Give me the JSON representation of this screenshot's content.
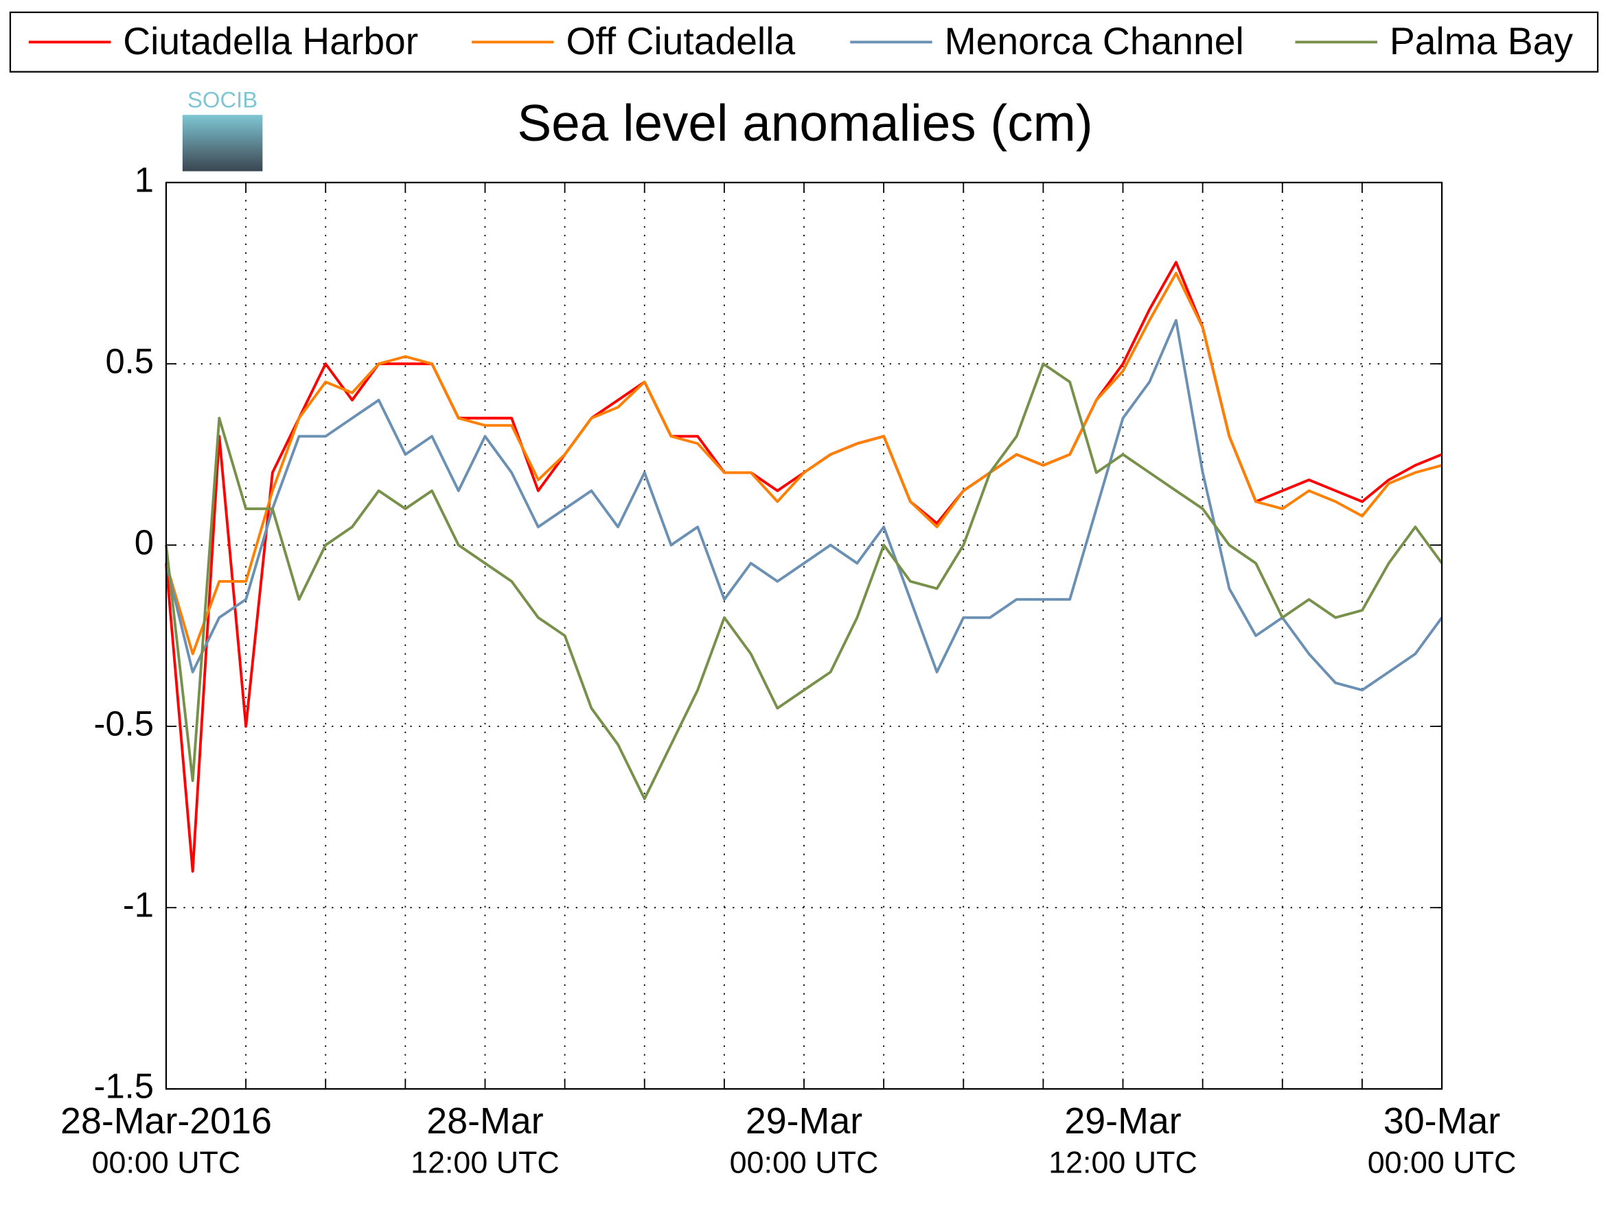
{
  "chart_data": {
    "type": "line",
    "title": "Sea level anomalies (cm)",
    "logo": "SOCIB",
    "x": [
      "2016-03-28T00:00",
      "2016-03-28T01:00",
      "2016-03-28T02:00",
      "2016-03-28T03:00",
      "2016-03-28T04:00",
      "2016-03-28T05:00",
      "2016-03-28T06:00",
      "2016-03-28T07:00",
      "2016-03-28T08:00",
      "2016-03-28T09:00",
      "2016-03-28T10:00",
      "2016-03-28T11:00",
      "2016-03-28T12:00",
      "2016-03-28T13:00",
      "2016-03-28T14:00",
      "2016-03-28T15:00",
      "2016-03-28T16:00",
      "2016-03-28T17:00",
      "2016-03-28T18:00",
      "2016-03-28T19:00",
      "2016-03-28T20:00",
      "2016-03-28T21:00",
      "2016-03-28T22:00",
      "2016-03-28T23:00",
      "2016-03-29T00:00",
      "2016-03-29T01:00",
      "2016-03-29T02:00",
      "2016-03-29T03:00",
      "2016-03-29T04:00",
      "2016-03-29T05:00",
      "2016-03-29T06:00",
      "2016-03-29T07:00",
      "2016-03-29T08:00",
      "2016-03-29T09:00",
      "2016-03-29T10:00",
      "2016-03-29T11:00",
      "2016-03-29T12:00",
      "2016-03-29T13:00",
      "2016-03-29T14:00",
      "2016-03-29T15:00",
      "2016-03-29T16:00",
      "2016-03-29T17:00",
      "2016-03-29T18:00",
      "2016-03-29T19:00",
      "2016-03-29T20:00",
      "2016-03-29T21:00",
      "2016-03-29T22:00",
      "2016-03-29T23:00",
      "2016-03-30T00:00"
    ],
    "series": [
      {
        "name": "Ciutadella Harbor",
        "color": "#ff0000",
        "values": [
          -0.05,
          -0.9,
          0.3,
          -0.5,
          0.2,
          0.35,
          0.5,
          0.4,
          0.5,
          0.5,
          0.5,
          0.35,
          0.35,
          0.35,
          0.15,
          0.25,
          0.35,
          0.4,
          0.45,
          0.3,
          0.3,
          0.2,
          0.2,
          0.15,
          0.2,
          0.25,
          0.28,
          0.3,
          0.12,
          0.06,
          0.15,
          0.2,
          0.25,
          0.22,
          0.25,
          0.4,
          0.5,
          0.65,
          0.78,
          0.6,
          0.3,
          0.12,
          0.15,
          0.18,
          0.15,
          0.12,
          0.18,
          0.22,
          0.25
        ]
      },
      {
        "name": "Off Ciutadella",
        "color": "#ff8000",
        "values": [
          -0.05,
          -0.3,
          -0.1,
          -0.1,
          0.15,
          0.35,
          0.45,
          0.42,
          0.5,
          0.52,
          0.5,
          0.35,
          0.33,
          0.33,
          0.18,
          0.25,
          0.35,
          0.38,
          0.45,
          0.3,
          0.28,
          0.2,
          0.2,
          0.12,
          0.2,
          0.25,
          0.28,
          0.3,
          0.12,
          0.05,
          0.15,
          0.2,
          0.25,
          0.22,
          0.25,
          0.4,
          0.48,
          0.62,
          0.75,
          0.6,
          0.3,
          0.12,
          0.1,
          0.15,
          0.12,
          0.08,
          0.17,
          0.2,
          0.22
        ]
      },
      {
        "name": "Menorca Channel",
        "color": "#6a90b4",
        "values": [
          -0.05,
          -0.35,
          -0.2,
          -0.15,
          0.1,
          0.3,
          0.3,
          0.35,
          0.4,
          0.25,
          0.3,
          0.15,
          0.3,
          0.2,
          0.05,
          0.1,
          0.15,
          0.05,
          0.2,
          0.0,
          0.05,
          -0.15,
          -0.05,
          -0.1,
          -0.05,
          0.0,
          -0.05,
          0.05,
          -0.15,
          -0.35,
          -0.2,
          -0.2,
          -0.15,
          -0.15,
          -0.15,
          0.1,
          0.35,
          0.45,
          0.62,
          0.2,
          -0.12,
          -0.25,
          -0.2,
          -0.3,
          -0.38,
          -0.4,
          -0.35,
          -0.3,
          -0.2
        ]
      },
      {
        "name": "Palma Bay",
        "color": "#77904a",
        "values": [
          0.0,
          -0.65,
          0.35,
          0.1,
          0.1,
          -0.15,
          0.0,
          0.05,
          0.15,
          0.1,
          0.15,
          0.0,
          -0.05,
          -0.1,
          -0.2,
          -0.25,
          -0.45,
          -0.55,
          -0.7,
          -0.55,
          -0.4,
          -0.2,
          -0.3,
          -0.45,
          -0.4,
          -0.35,
          -0.2,
          0.0,
          -0.1,
          -0.12,
          0.0,
          0.2,
          0.3,
          0.5,
          0.45,
          0.2,
          0.25,
          0.2,
          0.15,
          0.1,
          0.0,
          -0.05,
          -0.2,
          -0.15,
          -0.2,
          -0.18,
          -0.05,
          0.05,
          -0.05
        ]
      }
    ],
    "xlim": [
      "2016-03-28T00:00",
      "2016-03-30T00:00"
    ],
    "xticks": [
      {
        "value": "2016-03-28T00:00",
        "label": [
          "28-Mar-2016",
          "00:00 UTC"
        ]
      },
      "2016-03-28T03:00",
      "2016-03-28T06:00",
      "2016-03-28T09:00",
      {
        "value": "2016-03-28T12:00",
        "label": [
          "28-Mar",
          "12:00 UTC"
        ]
      },
      "2016-03-28T15:00",
      "2016-03-28T18:00",
      "2016-03-28T21:00",
      {
        "value": "2016-03-29T00:00",
        "label": [
          "29-Mar",
          "00:00 UTC"
        ]
      },
      "2016-03-29T03:00",
      "2016-03-29T06:00",
      "2016-03-29T09:00",
      {
        "value": "2016-03-29T12:00",
        "label": [
          "29-Mar",
          "12:00 UTC"
        ]
      },
      "2016-03-29T15:00",
      "2016-03-29T18:00",
      "2016-03-29T21:00",
      {
        "value": "2016-03-30T00:00",
        "label": [
          "30-Mar",
          "00:00 UTC"
        ]
      }
    ],
    "ylim": [
      -1.5,
      1
    ],
    "yticks": [
      -1.5,
      -1,
      -0.5,
      0,
      0.5,
      1
    ],
    "grid": true,
    "legend": "top"
  }
}
